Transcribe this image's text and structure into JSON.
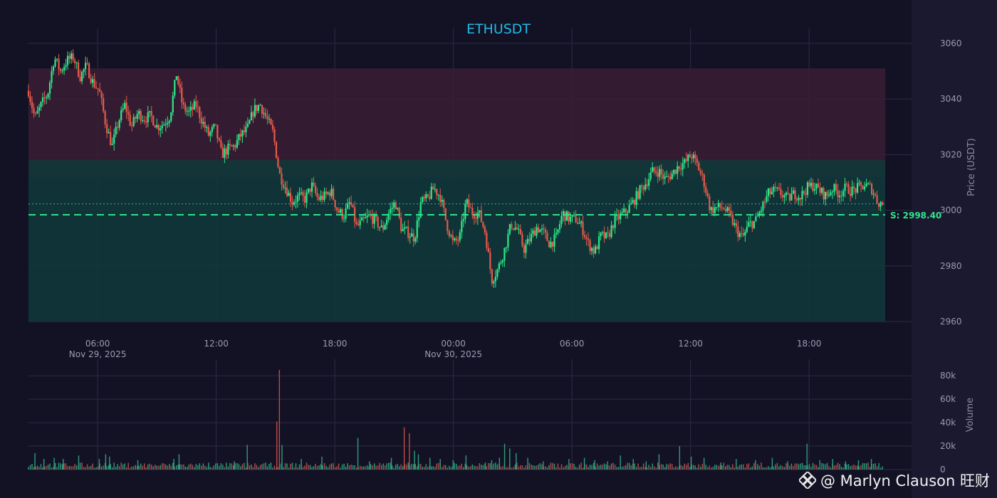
{
  "chart_data": [
    {
      "type": "candlestick",
      "title": "ETHUSDT",
      "ylabel": "Price (USDT)",
      "ylim": [
        2960,
        3060
      ],
      "y_ticks": [
        2960,
        2980,
        3000,
        3020,
        3040,
        3060
      ],
      "x_tick_labels": [
        {
          "t": 5.5,
          "label": "06:00",
          "sub": "Nov 29, 2025"
        },
        {
          "t": 11.5,
          "label": "12:00",
          "sub": ""
        },
        {
          "t": 17.5,
          "label": "18:00",
          "sub": ""
        },
        {
          "t": 23.5,
          "label": "00:00",
          "sub": "Nov 30, 2025"
        },
        {
          "t": 29.5,
          "label": "06:00",
          "sub": ""
        },
        {
          "t": 35.5,
          "label": "12:00",
          "sub": ""
        },
        {
          "t": 41.5,
          "label": "18:00",
          "sub": ""
        }
      ],
      "time_range": [
        0,
        41.5
      ],
      "zones": [
        {
          "kind": "resistance",
          "from": 3012,
          "to": 3051,
          "color": "#3a1f35"
        },
        {
          "kind": "support",
          "from": 2960,
          "to": 3018,
          "color": "#0f3a3a"
        }
      ],
      "support_line": {
        "label": "S: 2998.40",
        "value": 2998.4,
        "color": "#2ee88a"
      },
      "current_price_line": 3002.3,
      "keypoints": [
        [
          0,
          3043
        ],
        [
          0.5,
          3033
        ],
        [
          1,
          3038
        ],
        [
          1.5,
          3042
        ],
        [
          2,
          3055
        ],
        [
          2.5,
          3050
        ],
        [
          3,
          3054
        ],
        [
          3.5,
          3055
        ],
        [
          4,
          3048
        ],
        [
          4.5,
          3052
        ],
        [
          5,
          3046
        ],
        [
          5.5,
          3043
        ],
        [
          6,
          3031
        ],
        [
          6.5,
          3023
        ],
        [
          7,
          3032
        ],
        [
          7.5,
          3038
        ],
        [
          8,
          3030
        ],
        [
          8.5,
          3035
        ],
        [
          9,
          3033
        ],
        [
          9.5,
          3034
        ],
        [
          10,
          3030
        ],
        [
          10.5,
          3031
        ],
        [
          11,
          3034
        ],
        [
          11.5,
          3049
        ],
        [
          12,
          3037
        ],
        [
          12.5,
          3035
        ],
        [
          13,
          3038
        ],
        [
          13.5,
          3032
        ],
        [
          14,
          3027
        ],
        [
          14.5,
          3030
        ],
        [
          15,
          3020
        ],
        [
          15.5,
          3022
        ],
        [
          16,
          3023
        ],
        [
          16.5,
          3027
        ],
        [
          17,
          3029
        ],
        [
          17.5,
          3036
        ],
        [
          18,
          3038
        ],
        [
          18.5,
          3033
        ],
        [
          19,
          3028
        ],
        [
          19.5,
          3013
        ],
        [
          20,
          3008
        ],
        [
          20.5,
          3003
        ],
        [
          21,
          3005
        ],
        [
          21.5,
          3004
        ],
        [
          22,
          3009
        ],
        [
          22.5,
          3004
        ],
        [
          23,
          3005
        ],
        [
          23.5,
          3007
        ],
        [
          24,
          3000
        ],
        [
          24.5,
          2998
        ],
        [
          25,
          3003
        ],
        [
          25.5,
          2994
        ],
        [
          26,
          2996
        ],
        [
          26.5,
          2998
        ],
        [
          27,
          2996
        ],
        [
          27.5,
          2993
        ],
        [
          28,
          2999
        ],
        [
          28.5,
          3003
        ],
        [
          29,
          2993
        ],
        [
          29.5,
          2992
        ],
        [
          30,
          2990
        ],
        [
          30.5,
          3003
        ],
        [
          31,
          3004
        ],
        [
          31.5,
          3008
        ],
        [
          32,
          3005
        ],
        [
          32.5,
          2995
        ],
        [
          33,
          2988
        ],
        [
          33.5,
          2990
        ],
        [
          34,
          3003
        ],
        [
          34.5,
          2999
        ],
        [
          35,
          2999
        ],
        [
          35.5,
          2992
        ],
        [
          36,
          2975
        ],
        [
          36.5,
          2979
        ],
        [
          37,
          2986
        ],
        [
          37.5,
          2995
        ],
        [
          38,
          2993
        ],
        [
          38.5,
          2986
        ],
        [
          39,
          2990
        ],
        [
          39.5,
          2994
        ],
        [
          40,
          2992
        ],
        [
          40.5,
          2988
        ],
        [
          41,
          2990
        ],
        [
          41.5,
          2999
        ],
        [
          42,
          2997
        ],
        [
          42.5,
          2997
        ],
        [
          43,
          2994
        ],
        [
          43.5,
          2988
        ],
        [
          44,
          2985
        ],
        [
          44.5,
          2991
        ],
        [
          45,
          2990
        ],
        [
          45.5,
          2996
        ],
        [
          46,
          2998
        ],
        [
          46.5,
          3000
        ],
        [
          47,
          3003
        ],
        [
          47.5,
          3007
        ],
        [
          48,
          3010
        ],
        [
          48.5,
          3014
        ],
        [
          49,
          3014
        ],
        [
          49.5,
          3011
        ],
        [
          50,
          3013
        ],
        [
          50.5,
          3016
        ],
        [
          51,
          3017
        ],
        [
          51.5,
          3020
        ],
        [
          52,
          3016
        ],
        [
          52.5,
          3010
        ],
        [
          53,
          3000
        ],
        [
          53.5,
          3001
        ],
        [
          54,
          3001
        ],
        [
          54.5,
          2998
        ],
        [
          55,
          2993
        ],
        [
          55.5,
          2990
        ],
        [
          56,
          2995
        ],
        [
          56.5,
          2996
        ],
        [
          57,
          3001
        ],
        [
          57.5,
          3006
        ],
        [
          58,
          3007
        ],
        [
          58.5,
          3006
        ],
        [
          59,
          3004
        ],
        [
          59.5,
          3006
        ],
        [
          60,
          3005
        ],
        [
          60.5,
          3008
        ],
        [
          61,
          3009
        ],
        [
          61.5,
          3007
        ],
        [
          62,
          3005
        ],
        [
          62.5,
          3008
        ],
        [
          63,
          3006
        ],
        [
          63.5,
          3008
        ],
        [
          64,
          3007
        ],
        [
          64.5,
          3008
        ],
        [
          65,
          3009
        ],
        [
          65.5,
          3008
        ],
        [
          66,
          3003
        ],
        [
          66.5,
          3002
        ]
      ]
    },
    {
      "type": "bar",
      "ylabel": "Volume",
      "ylim": [
        0,
        85000
      ],
      "y_ticks": [
        0,
        20000,
        40000,
        60000,
        80000
      ],
      "y_tick_labels": [
        "0",
        "20k",
        "40k",
        "60k",
        "80k"
      ],
      "spikes": [
        [
          0.5,
          14000
        ],
        [
          1.2,
          9000
        ],
        [
          2.0,
          10000
        ],
        [
          2.7,
          9000
        ],
        [
          3.9,
          12000
        ],
        [
          5.5,
          9000
        ],
        [
          6.0,
          13000
        ],
        [
          6.3,
          11000
        ],
        [
          8.5,
          8000
        ],
        [
          11.3,
          9000
        ],
        [
          11.7,
          13000
        ],
        [
          14.0,
          6000
        ],
        [
          16.0,
          7000
        ],
        [
          17.0,
          21000
        ],
        [
          19.3,
          41000
        ],
        [
          19.5,
          85000
        ],
        [
          19.7,
          21000
        ],
        [
          21.2,
          9000
        ],
        [
          22.8,
          11000
        ],
        [
          25.6,
          27000
        ],
        [
          26.5,
          7000
        ],
        [
          28.2,
          10000
        ],
        [
          29.2,
          36000
        ],
        [
          29.6,
          31000
        ],
        [
          30.0,
          16000
        ],
        [
          30.3,
          13000
        ],
        [
          31.2,
          10000
        ],
        [
          32.0,
          9000
        ],
        [
          33.0,
          8000
        ],
        [
          34.0,
          12000
        ],
        [
          35.5,
          6000
        ],
        [
          36.0,
          8000
        ],
        [
          36.6,
          10000
        ],
        [
          37.0,
          22000
        ],
        [
          37.4,
          18000
        ],
        [
          37.9,
          14000
        ],
        [
          38.8,
          10000
        ],
        [
          40.0,
          7000
        ],
        [
          42.0,
          9000
        ],
        [
          43.2,
          10000
        ],
        [
          44.0,
          8000
        ],
        [
          45.0,
          7000
        ],
        [
          46.0,
          12000
        ],
        [
          47.0,
          9000
        ],
        [
          48.0,
          7000
        ],
        [
          49.0,
          13000
        ],
        [
          50.6,
          20000
        ],
        [
          51.5,
          11000
        ],
        [
          52.5,
          10000
        ],
        [
          53.8,
          6000
        ],
        [
          55.0,
          9000
        ],
        [
          56.5,
          8000
        ],
        [
          57.8,
          10000
        ],
        [
          59.0,
          7000
        ],
        [
          60.5,
          22000
        ],
        [
          61.5,
          8000
        ],
        [
          62.5,
          9000
        ],
        [
          63.5,
          7000
        ],
        [
          64.5,
          8000
        ],
        [
          65.5,
          9000
        ]
      ]
    }
  ],
  "watermark": "@ Marlyn Clauson 旺财"
}
